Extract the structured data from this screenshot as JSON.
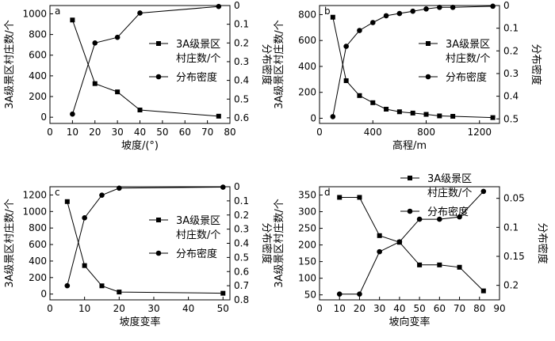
{
  "legend": {
    "sq_line1": "3A级景区",
    "sq_line2": "村庄数/个",
    "circle": "分布密度"
  },
  "chart_data": [
    {
      "type": "line",
      "panel": "a",
      "xlabel": "坡度/(°)",
      "ylabel_left": "3A级景区村庄数/个",
      "ylabel_right": "分布密度",
      "xlim": [
        0,
        80
      ],
      "xticks": [
        0,
        10,
        20,
        30,
        40,
        50,
        60,
        70,
        80
      ],
      "ylim_left": [
        -60,
        1080
      ],
      "yticks_left": [
        0,
        200,
        400,
        600,
        800,
        1000
      ],
      "ylim_right": [
        0.63,
        0
      ],
      "yticks_right": [
        0,
        0.1,
        0.2,
        0.3,
        0.4,
        0.5,
        0.6
      ],
      "right_reversed": true,
      "legend_position": "middle-right",
      "series": [
        {
          "name": "3A级景区村庄数/个",
          "axis": "left",
          "marker": "square",
          "x": [
            10,
            20,
            30,
            40,
            75
          ],
          "y": [
            940,
            325,
            245,
            70,
            10
          ]
        },
        {
          "name": "分布密度",
          "axis": "right",
          "marker": "circle",
          "x": [
            10,
            20,
            30,
            40,
            75
          ],
          "y": [
            0.58,
            0.2,
            0.17,
            0.04,
            0.005
          ]
        }
      ]
    },
    {
      "type": "line",
      "panel": "b",
      "xlabel": "高程/m",
      "ylabel_left": "3A级景区村庄数/个",
      "ylabel_right": "分布密度",
      "xlim": [
        0,
        1350
      ],
      "xticks": [
        0,
        400,
        800,
        1200
      ],
      "ylim_left": [
        -40,
        870
      ],
      "yticks_left": [
        0,
        200,
        400,
        600,
        800
      ],
      "ylim_right": [
        0.52,
        0
      ],
      "yticks_right": [
        0,
        0.1,
        0.2,
        0.3,
        0.4,
        0.5
      ],
      "right_reversed": true,
      "legend_position": "middle-right",
      "series": [
        {
          "name": "3A级景区村庄数/个",
          "axis": "left",
          "marker": "square",
          "x": [
            100,
            200,
            300,
            400,
            500,
            600,
            700,
            800,
            900,
            1000,
            1300
          ],
          "y": [
            780,
            290,
            175,
            120,
            70,
            50,
            40,
            30,
            18,
            15,
            5
          ]
        },
        {
          "name": "分布密度",
          "axis": "right",
          "marker": "circle",
          "x": [
            100,
            200,
            300,
            400,
            500,
            600,
            700,
            800,
            900,
            1000,
            1300
          ],
          "y": [
            0.49,
            0.18,
            0.11,
            0.075,
            0.045,
            0.035,
            0.025,
            0.015,
            0.008,
            0.008,
            0.003
          ]
        }
      ]
    },
    {
      "type": "line",
      "panel": "c",
      "xlabel": "坡度变率",
      "ylabel_left": "3A级景区村庄数/个",
      "ylabel_right": "分布密度",
      "xlim": [
        0,
        52
      ],
      "xticks": [
        0,
        10,
        20,
        30,
        40,
        50
      ],
      "ylim_left": [
        -70,
        1300
      ],
      "yticks_left": [
        0,
        200,
        400,
        600,
        800,
        1000,
        1200
      ],
      "ylim_right": [
        0.8,
        0
      ],
      "yticks_right": [
        0,
        0.1,
        0.2,
        0.3,
        0.4,
        0.5,
        0.6,
        0.7,
        0.8
      ],
      "right_reversed": true,
      "legend_position": "middle-right",
      "series": [
        {
          "name": "3A级景区村庄数/个",
          "axis": "left",
          "marker": "square",
          "x": [
            5,
            10,
            15,
            20,
            50
          ],
          "y": [
            1120,
            345,
            100,
            25,
            10
          ]
        },
        {
          "name": "分布密度",
          "axis": "right",
          "marker": "circle",
          "x": [
            5,
            10,
            15,
            20,
            50
          ],
          "y": [
            0.7,
            0.22,
            0.06,
            0.01,
            0.003
          ]
        }
      ]
    },
    {
      "type": "line",
      "panel": "d",
      "xlabel": "坡向变率",
      "ylabel_left": "3A级景区村庄数/个",
      "ylabel_right": "分布密度",
      "xlim": [
        0,
        90
      ],
      "xticks": [
        0,
        10,
        20,
        30,
        40,
        50,
        60,
        70,
        80,
        90
      ],
      "ylim_left": [
        35,
        375
      ],
      "yticks_left": [
        50,
        100,
        150,
        200,
        250,
        300,
        350
      ],
      "ylim_right": [
        0.225,
        0.03
      ],
      "yticks_right": [
        0.05,
        0.1,
        0.15,
        0.2
      ],
      "right_reversed": true,
      "legend_position": "top-right",
      "series": [
        {
          "name": "3A级景区村庄数/个",
          "axis": "left",
          "marker": "square",
          "x": [
            10,
            20,
            30,
            40,
            50,
            60,
            70,
            82
          ],
          "y": [
            343,
            343,
            228,
            208,
            140,
            140,
            133,
            62
          ]
        },
        {
          "name": "分布密度",
          "axis": "right",
          "marker": "circle",
          "x": [
            10,
            20,
            30,
            40,
            50,
            60,
            70,
            82
          ],
          "y": [
            0.215,
            0.215,
            0.142,
            0.125,
            0.086,
            0.086,
            0.082,
            0.038
          ]
        }
      ]
    }
  ]
}
